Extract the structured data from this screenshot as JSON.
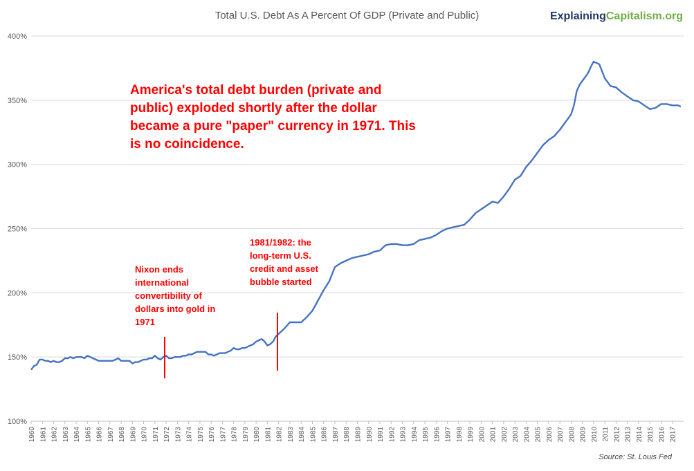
{
  "chart_data": {
    "type": "line",
    "title": "Total U.S. Debt As A Percent Of GDP (Private and Public)",
    "xlabel": "",
    "ylabel": "",
    "ylim": [
      100,
      400
    ],
    "yticks": [
      "100%",
      "150%",
      "200%",
      "250%",
      "300%",
      "350%",
      "400%"
    ],
    "xticks": [
      "1960",
      "1961",
      "1962",
      "1963",
      "1964",
      "1965",
      "1966",
      "1967",
      "1968",
      "1969",
      "1970",
      "1971",
      "1972",
      "1973",
      "1974",
      "1975",
      "1976",
      "1977",
      "1978",
      "1979",
      "1980",
      "1981",
      "1982",
      "1983",
      "1984",
      "1985",
      "1986",
      "1987",
      "1988",
      "1989",
      "1990",
      "1991",
      "1992",
      "1993",
      "1994",
      "1995",
      "1996",
      "1997",
      "1998",
      "1999",
      "2000",
      "2001",
      "2002",
      "2003",
      "2004",
      "2005",
      "2006",
      "2007",
      "2008",
      "2009",
      "2010",
      "2011",
      "2012",
      "2013",
      "2014",
      "2015",
      "2016",
      "2017"
    ],
    "grid": true,
    "series": [
      {
        "color": "#4472c4",
        "x": [
          1960.0,
          1960.25,
          1960.5,
          1960.75,
          1961.0,
          1961.25,
          1961.5,
          1961.75,
          1962.0,
          1962.25,
          1962.5,
          1962.75,
          1963.0,
          1963.25,
          1963.5,
          1963.75,
          1964.0,
          1964.25,
          1964.5,
          1964.75,
          1965.0,
          1965.25,
          1965.5,
          1965.75,
          1966.0,
          1966.25,
          1966.5,
          1966.75,
          1967.0,
          1967.25,
          1967.5,
          1967.75,
          1968.0,
          1968.25,
          1968.5,
          1968.75,
          1969.0,
          1969.25,
          1969.5,
          1969.75,
          1970.0,
          1970.25,
          1970.5,
          1970.75,
          1971.0,
          1971.25,
          1971.5,
          1971.75,
          1972.0,
          1972.25,
          1972.5,
          1972.75,
          1973.0,
          1973.25,
          1973.5,
          1973.75,
          1974.0,
          1974.25,
          1974.5,
          1974.75,
          1975.0,
          1975.25,
          1975.5,
          1975.75,
          1976.0,
          1976.25,
          1976.5,
          1976.75,
          1977.0,
          1977.25,
          1977.5,
          1977.75,
          1978.0,
          1978.25,
          1978.5,
          1978.75,
          1979.0,
          1979.25,
          1979.5,
          1979.75,
          1980.0,
          1980.25,
          1980.5,
          1980.75,
          1981.0,
          1981.25,
          1981.5,
          1981.75,
          1982.0,
          1982.5,
          1983.0,
          1983.5,
          1984.0,
          1984.5,
          1985.0,
          1985.5,
          1986.0,
          1986.5,
          1987.0,
          1987.5,
          1988.0,
          1988.5,
          1989.0,
          1989.5,
          1990.0,
          1990.5,
          1991.0,
          1991.5,
          1992.0,
          1992.5,
          1993.0,
          1993.5,
          1994.0,
          1994.5,
          1995.0,
          1995.5,
          1996.0,
          1996.5,
          1997.0,
          1997.5,
          1998.0,
          1998.5,
          1999.0,
          1999.5,
          2000.0,
          2000.5,
          2001.0,
          2001.5,
          2002.0,
          2002.5,
          2003.0,
          2003.5,
          2004.0,
          2004.5,
          2005.0,
          2005.5,
          2006.0,
          2006.5,
          2007.0,
          2007.5,
          2008.0,
          2008.25,
          2008.5,
          2008.75,
          2009.0,
          2009.25,
          2009.5,
          2009.75,
          2010.0,
          2010.5,
          2011.0,
          2011.5,
          2012.0,
          2012.5,
          2013.0,
          2013.5,
          2014.0,
          2014.5,
          2015.0,
          2015.5,
          2016.0,
          2016.5,
          2017.0,
          2017.5,
          2017.75
        ],
        "values": [
          140,
          143,
          144,
          148,
          148,
          147,
          147,
          146,
          147,
          146,
          146,
          147,
          149,
          149,
          150,
          149,
          150,
          150,
          150,
          149,
          151,
          150,
          149,
          148,
          147,
          147,
          147,
          147,
          147,
          147,
          148,
          149,
          147,
          147,
          147,
          147,
          145,
          146,
          146,
          147,
          148,
          148,
          149,
          149,
          151,
          149,
          148,
          150,
          151,
          149,
          149,
          150,
          150,
          150,
          151,
          151,
          152,
          152,
          153,
          154,
          154,
          154,
          154,
          152,
          152,
          151,
          152,
          153,
          153,
          153,
          154,
          155,
          157,
          156,
          156,
          157,
          157,
          158,
          159,
          160,
          162,
          163,
          164,
          162,
          159,
          160,
          162,
          166,
          168,
          172,
          177,
          177,
          177,
          181,
          186,
          194,
          202,
          209,
          220,
          223,
          225,
          227,
          228,
          229,
          230,
          232,
          233,
          237,
          238,
          238,
          237,
          237,
          238,
          241,
          242,
          243,
          245,
          248,
          250,
          251,
          252,
          253,
          257,
          262,
          265,
          268,
          271,
          270,
          275,
          281,
          288,
          291,
          298,
          303,
          309,
          315,
          319,
          322,
          327,
          333,
          339,
          346,
          357,
          362,
          365,
          368,
          371,
          376,
          380,
          378,
          367,
          361,
          360,
          356,
          353,
          350,
          349,
          346,
          343,
          344,
          347,
          347,
          346,
          346,
          345
        ]
      }
    ]
  },
  "header": {
    "brand_part1": "Explaining",
    "brand_part2": "Capitalism.org"
  },
  "annotations": {
    "headline": "America's total debt burden (private and public) exploded shortly after the dollar became a pure \"paper\" currency in 1971. This is no coincidence.",
    "nixon": "Nixon ends international convertibility of dollars into gold in 1971",
    "bubble": "1981/1982: the long-term U.S. credit and asset bubble started"
  },
  "footer": {
    "source": "Source: St. Louis Fed"
  }
}
